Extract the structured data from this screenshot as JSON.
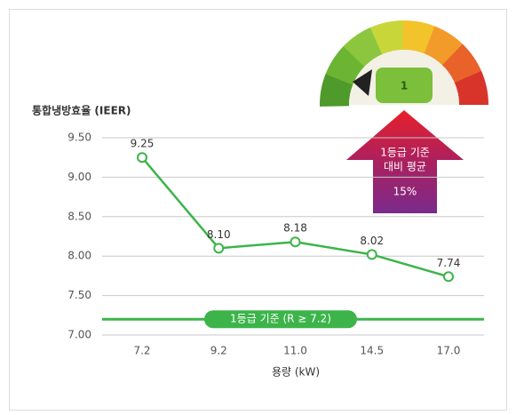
{
  "chart_data": {
    "type": "line",
    "y_axis_label": "통합냉방효율 (IEER)",
    "x_axis_label": "용량 (kW)",
    "categories": [
      "7.2",
      "9.2",
      "11.0",
      "14.5",
      "17.0"
    ],
    "values": [
      9.25,
      8.1,
      8.18,
      8.02,
      7.74
    ],
    "value_labels": [
      "9.25",
      "8.10",
      "8.18",
      "8.02",
      "7.74"
    ],
    "color": "#3cb44a",
    "ylim": [
      7.0,
      9.5
    ],
    "yticks": [
      {
        "value": 7.0,
        "label": "7.00"
      },
      {
        "value": 7.5,
        "label": "7.50"
      },
      {
        "value": 8.0,
        "label": "8.00"
      },
      {
        "value": 8.5,
        "label": "8.50"
      },
      {
        "value": 9.0,
        "label": "9.00"
      },
      {
        "value": 9.5,
        "label": "9.50"
      }
    ],
    "grid": true,
    "reference_line": {
      "value": 7.2,
      "label": "1등급 기준 (R ≥ 7.2)",
      "color": "#3cb44a"
    },
    "annotation": {
      "lines": [
        "1등급 기준",
        "대비 평균"
      ],
      "highlight": "15%"
    },
    "gauge_label": "1"
  }
}
